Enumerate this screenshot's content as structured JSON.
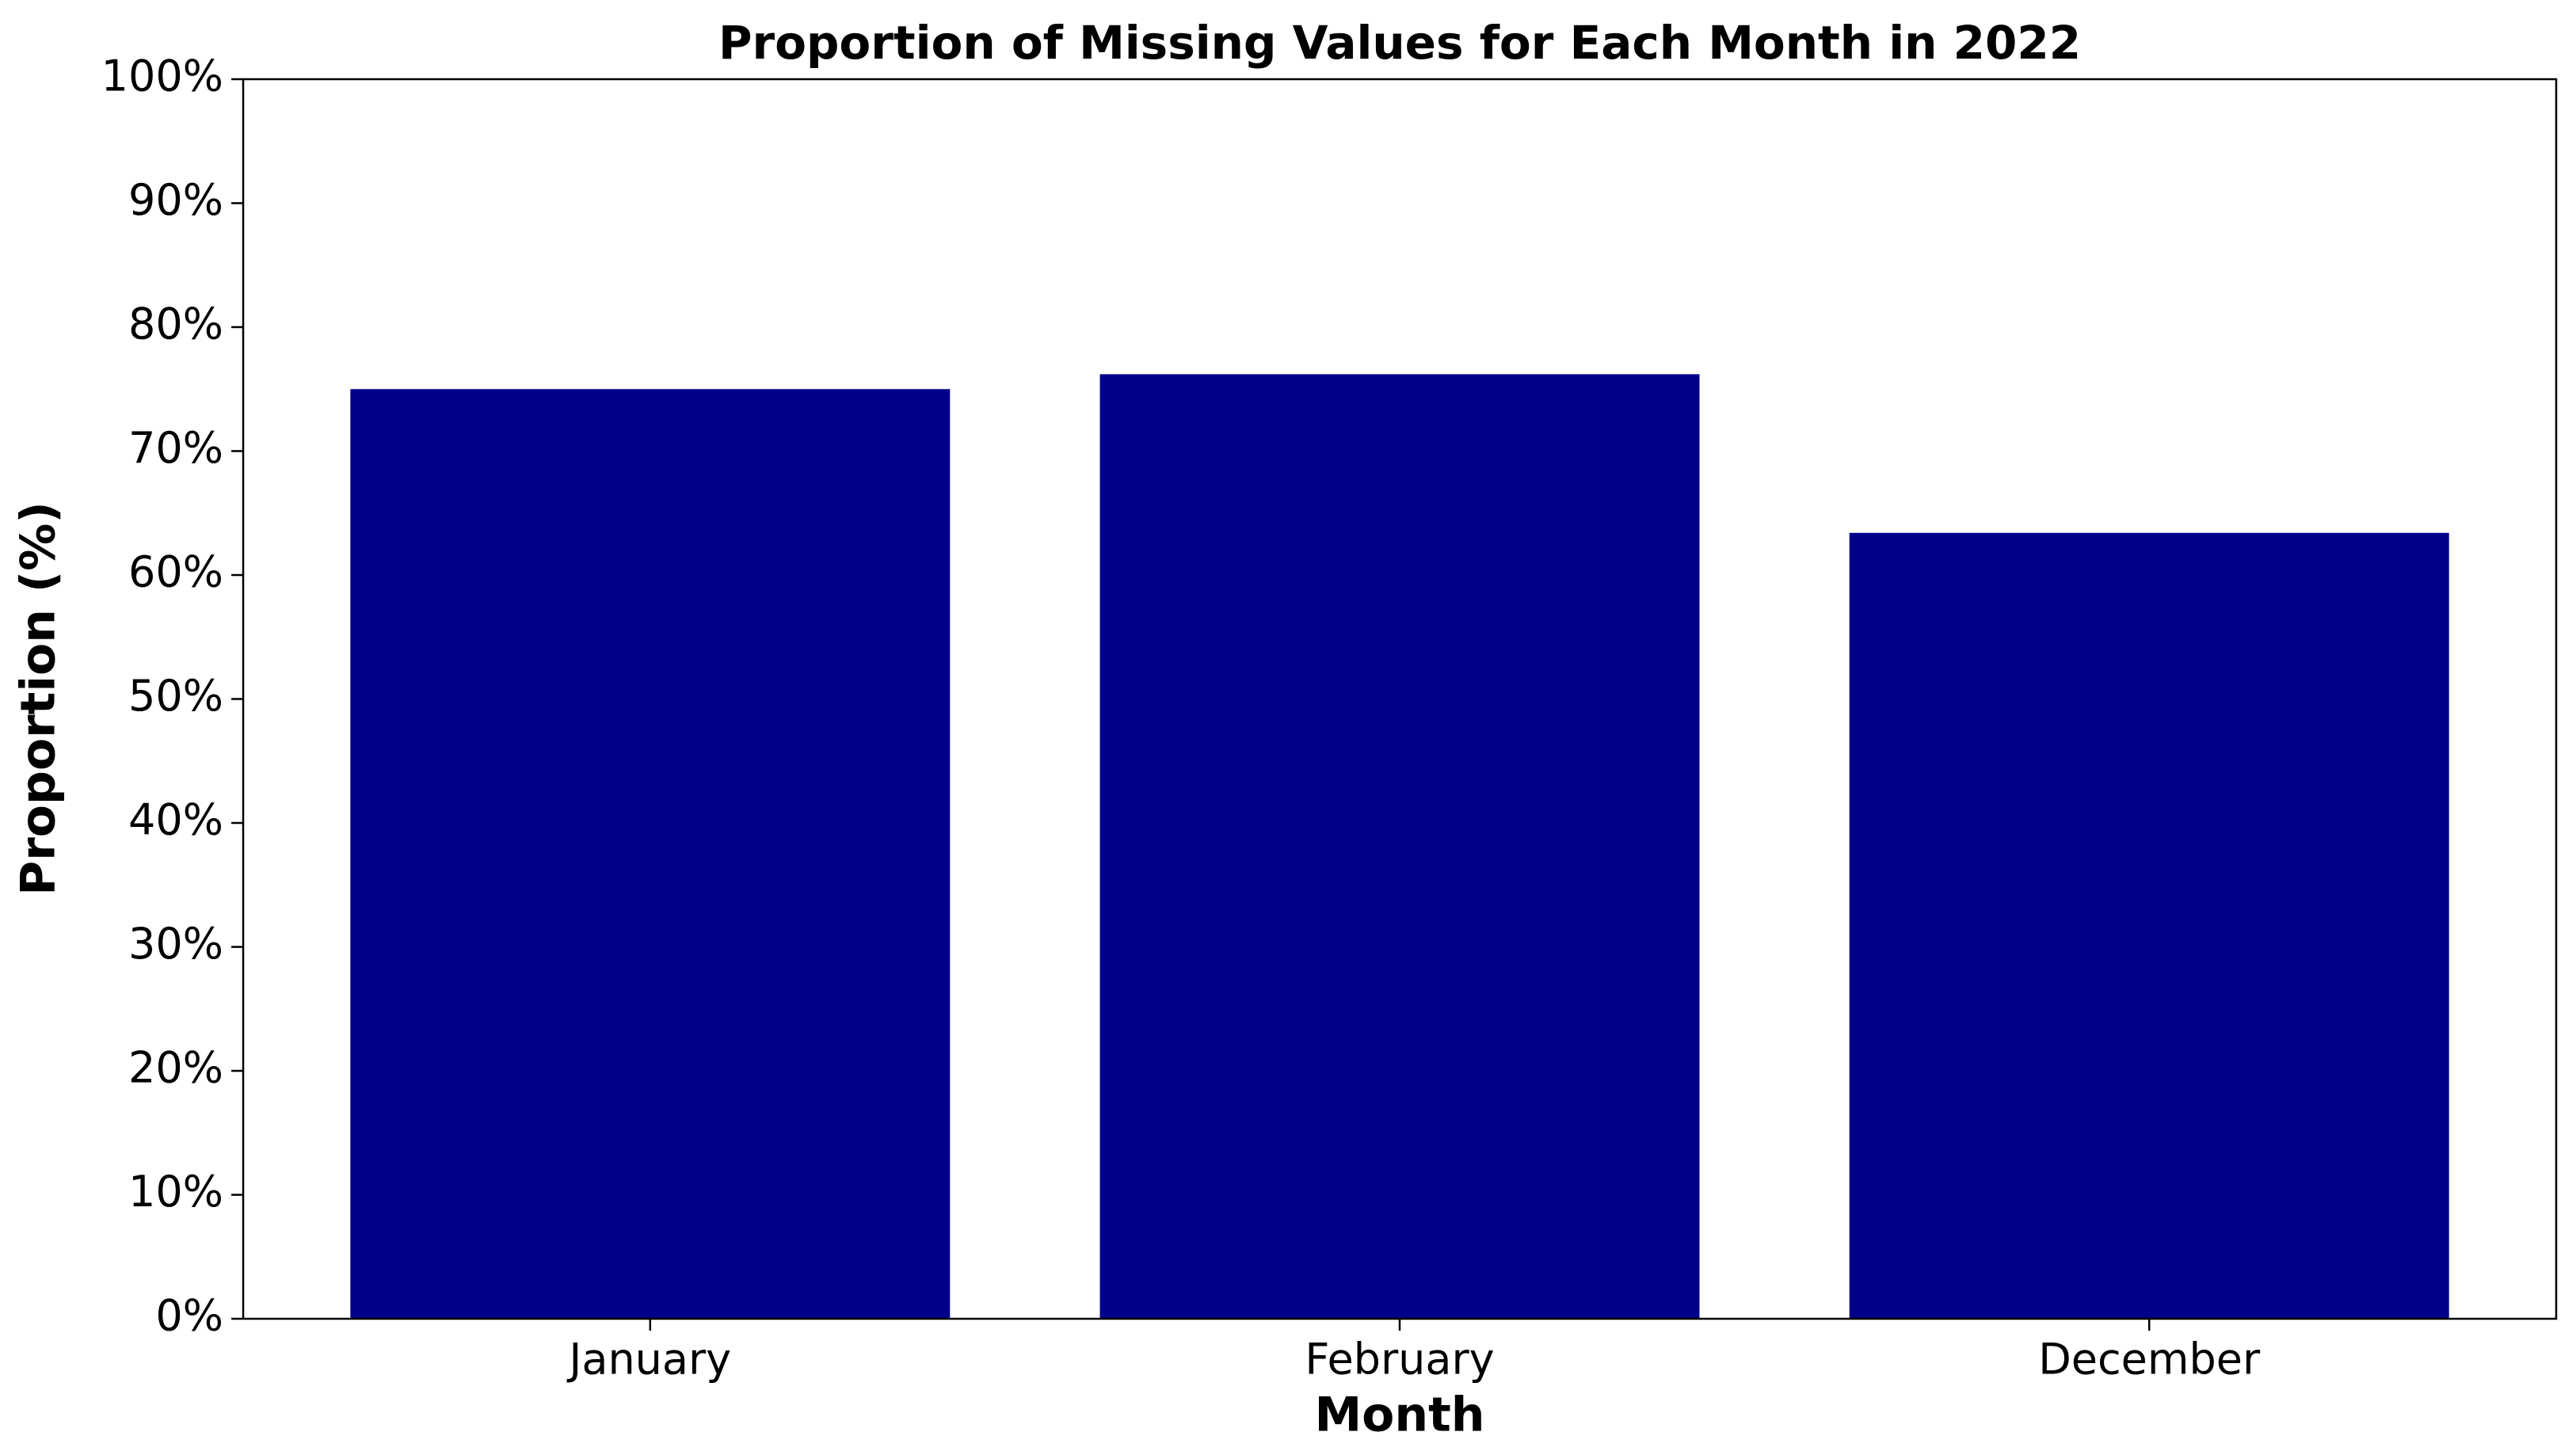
{
  "chart_data": {
    "type": "bar",
    "title": "Proportion of Missing Values for Each Month in 2022",
    "x_label": "Month",
    "y_label": "Proportion (%)",
    "categories": [
      "January",
      "February",
      "December"
    ],
    "values": [
      75.0,
      76.2,
      63.4
    ],
    "color": "#00008b",
    "ylim": [
      0,
      100
    ],
    "yticks": [
      {
        "value": 0,
        "label": "0%"
      },
      {
        "value": 10,
        "label": "10%"
      },
      {
        "value": 20,
        "label": "20%"
      },
      {
        "value": 30,
        "label": "30%"
      },
      {
        "value": 40,
        "label": "40%"
      },
      {
        "value": 50,
        "label": "50%"
      },
      {
        "value": 60,
        "label": "60%"
      },
      {
        "value": 70,
        "label": "70%"
      },
      {
        "value": 80,
        "label": "80%"
      },
      {
        "value": 90,
        "label": "90%"
      },
      {
        "value": 100,
        "label": "100%"
      }
    ],
    "grid": false
  }
}
